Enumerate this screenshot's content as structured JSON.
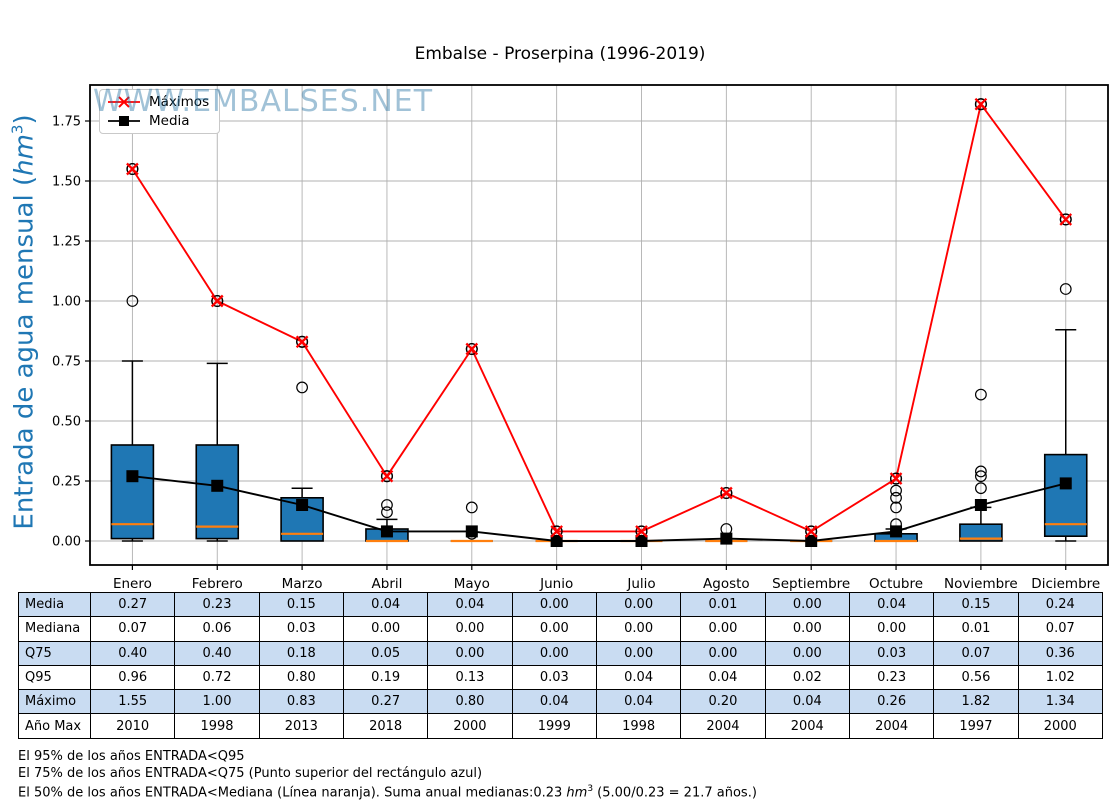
{
  "title": "Embalse - Proserpina (1996-2019)",
  "watermark": "WWW.EMBALSES.NET",
  "y_axis": {
    "label_prefix": "Entrada de agua mensual (",
    "label_unit": "hm",
    "label_sup": "3",
    "label_suffix": ")",
    "tick_labels": [
      "0.00",
      "0.25",
      "0.50",
      "0.75",
      "1.00",
      "1.25",
      "1.50",
      "1.75"
    ],
    "label_color": "#1f77b4"
  },
  "legend": {
    "items": [
      {
        "label": "Máximos",
        "color": "#ff0000",
        "marker": "x"
      },
      {
        "label": "Media",
        "color": "#000000",
        "marker": "square"
      }
    ]
  },
  "chart_data": {
    "type": "boxplot+line",
    "title": "Embalse - Proserpina (1996-2019)",
    "xlabel": "",
    "ylabel": "Entrada de agua mensual (hm3)",
    "ylim": [
      -0.1,
      1.9
    ],
    "yticks": [
      0.0,
      0.25,
      0.5,
      0.75,
      1.0,
      1.25,
      1.5,
      1.75
    ],
    "grid": true,
    "legend_position": "upper left",
    "box_fill": "#1f77b4",
    "median_color": "#ff7f0e",
    "categories": [
      "Enero",
      "Febrero",
      "Marzo",
      "Abril",
      "Mayo",
      "Junio",
      "Julio",
      "Agosto",
      "Septiembre",
      "Octubre",
      "Noviembre",
      "Diciembre"
    ],
    "series": [
      {
        "name": "Máximos",
        "color": "#ff0000",
        "marker": "x",
        "values": [
          1.55,
          1.0,
          0.83,
          0.27,
          0.8,
          0.04,
          0.04,
          0.2,
          0.04,
          0.26,
          1.82,
          1.34
        ]
      },
      {
        "name": "Media",
        "color": "#000000",
        "marker": "square",
        "values": [
          0.27,
          0.23,
          0.15,
          0.04,
          0.04,
          0.0,
          0.0,
          0.01,
          0.0,
          0.04,
          0.15,
          0.24
        ]
      }
    ],
    "boxplots": [
      {
        "q1": 0.01,
        "median": 0.07,
        "q3": 0.4,
        "whisker_low": 0.0,
        "whisker_high": 0.75,
        "outliers": [
          1.0,
          1.55
        ]
      },
      {
        "q1": 0.01,
        "median": 0.06,
        "q3": 0.4,
        "whisker_low": 0.0,
        "whisker_high": 0.74,
        "outliers": [
          1.0
        ]
      },
      {
        "q1": 0.0,
        "median": 0.03,
        "q3": 0.18,
        "whisker_low": 0.0,
        "whisker_high": 0.22,
        "outliers": [
          0.64,
          0.83
        ]
      },
      {
        "q1": 0.0,
        "median": 0.0,
        "q3": 0.05,
        "whisker_low": 0.0,
        "whisker_high": 0.09,
        "outliers": [
          0.12,
          0.15,
          0.27
        ]
      },
      {
        "q1": 0.0,
        "median": 0.0,
        "q3": 0.0,
        "whisker_low": 0.0,
        "whisker_high": 0.0,
        "outliers": [
          0.03,
          0.14,
          0.8
        ]
      },
      {
        "q1": 0.0,
        "median": 0.0,
        "q3": 0.0,
        "whisker_low": 0.0,
        "whisker_high": 0.0,
        "outliers": [
          0.04
        ]
      },
      {
        "q1": 0.0,
        "median": 0.0,
        "q3": 0.0,
        "whisker_low": 0.0,
        "whisker_high": 0.0,
        "outliers": [
          0.04
        ]
      },
      {
        "q1": 0.0,
        "median": 0.0,
        "q3": 0.0,
        "whisker_low": 0.0,
        "whisker_high": 0.0,
        "outliers": [
          0.05,
          0.2
        ]
      },
      {
        "q1": 0.0,
        "median": 0.0,
        "q3": 0.0,
        "whisker_low": 0.0,
        "whisker_high": 0.0,
        "outliers": [
          0.04
        ]
      },
      {
        "q1": 0.0,
        "median": 0.0,
        "q3": 0.03,
        "whisker_low": 0.0,
        "whisker_high": 0.05,
        "outliers": [
          0.07,
          0.14,
          0.18,
          0.21,
          0.26
        ]
      },
      {
        "q1": 0.0,
        "median": 0.01,
        "q3": 0.07,
        "whisker_low": 0.0,
        "whisker_high": 0.14,
        "outliers": [
          0.22,
          0.27,
          0.29,
          0.61,
          1.82
        ]
      },
      {
        "q1": 0.02,
        "median": 0.07,
        "q3": 0.36,
        "whisker_low": 0.0,
        "whisker_high": 0.88,
        "outliers": [
          1.05,
          1.34
        ]
      }
    ]
  },
  "table": {
    "shade_color": "#c9dcf2",
    "rows": [
      {
        "label": "Media",
        "shaded": true,
        "values": [
          "0.27",
          "0.23",
          "0.15",
          "0.04",
          "0.04",
          "0.00",
          "0.00",
          "0.01",
          "0.00",
          "0.04",
          "0.15",
          "0.24"
        ]
      },
      {
        "label": "Mediana",
        "shaded": false,
        "values": [
          "0.07",
          "0.06",
          "0.03",
          "0.00",
          "0.00",
          "0.00",
          "0.00",
          "0.00",
          "0.00",
          "0.00",
          "0.01",
          "0.07"
        ]
      },
      {
        "label": "Q75",
        "shaded": true,
        "values": [
          "0.40",
          "0.40",
          "0.18",
          "0.05",
          "0.00",
          "0.00",
          "0.00",
          "0.00",
          "0.00",
          "0.03",
          "0.07",
          "0.36"
        ]
      },
      {
        "label": "Q95",
        "shaded": false,
        "values": [
          "0.96",
          "0.72",
          "0.80",
          "0.19",
          "0.13",
          "0.03",
          "0.04",
          "0.04",
          "0.02",
          "0.23",
          "0.56",
          "1.02"
        ]
      },
      {
        "label": "Máximo",
        "shaded": true,
        "values": [
          "1.55",
          "1.00",
          "0.83",
          "0.27",
          "0.80",
          "0.04",
          "0.04",
          "0.20",
          "0.04",
          "0.26",
          "1.82",
          "1.34"
        ]
      },
      {
        "label": "Año Max",
        "shaded": false,
        "values": [
          "2010",
          "1998",
          "2013",
          "2018",
          "2000",
          "1999",
          "1998",
          "2004",
          "2004",
          "2004",
          "1997",
          "2000"
        ]
      }
    ]
  },
  "footnotes": {
    "line1": "El 95% de los años ENTRADA<Q95",
    "line2": "El 75% de los años ENTRADA<Q75 (Punto superior del rectángulo azul)",
    "line3_pre": "El 50% de los años ENTRADA<Mediana (Línea naranja). Suma anual medianas:0.23 ",
    "line3_unit": "hm",
    "line3_sup": "3",
    "line3_post": " (5.00/0.23 = 21.7 años.)"
  }
}
